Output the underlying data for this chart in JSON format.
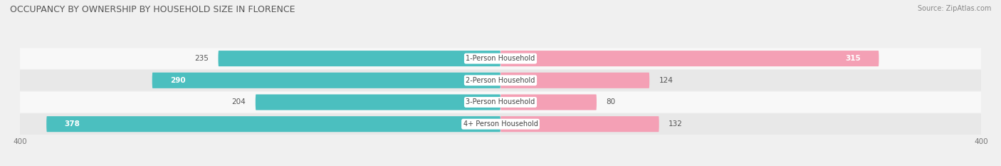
{
  "title": "OCCUPANCY BY OWNERSHIP BY HOUSEHOLD SIZE IN FLORENCE",
  "source": "Source: ZipAtlas.com",
  "categories": [
    "1-Person Household",
    "2-Person Household",
    "3-Person Household",
    "4+ Person Household"
  ],
  "owner_values": [
    235,
    290,
    204,
    378
  ],
  "renter_values": [
    315,
    124,
    80,
    132
  ],
  "owner_color": "#4bbfbf",
  "renter_color": "#f4a0b5",
  "axis_max": 400,
  "bar_height": 0.72,
  "background_color": "#f0f0f0",
  "row_bg_light": "#f8f8f8",
  "row_bg_dark": "#e8e8e8",
  "title_fontsize": 9,
  "source_fontsize": 7,
  "value_fontsize": 7.5,
  "cat_fontsize": 7,
  "axis_label_fontsize": 7.5,
  "legend_fontsize": 7.5,
  "inside_label_threshold": 280
}
